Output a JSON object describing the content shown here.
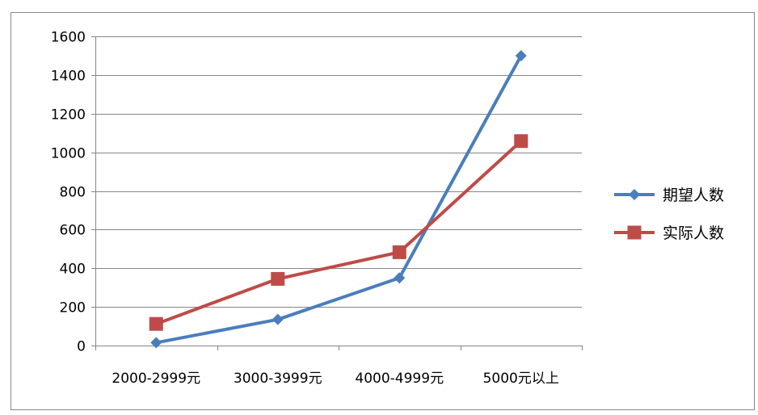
{
  "chart_data": {
    "type": "line",
    "title": "",
    "xlabel": "",
    "ylabel": "",
    "categories": [
      "2000-2999元",
      "3000-3999元",
      "4000-4999元",
      "5000元以上"
    ],
    "ylim": [
      0,
      1600
    ],
    "yticks": [
      0,
      200,
      400,
      600,
      800,
      1000,
      1200,
      1400,
      1600
    ],
    "grid": true,
    "legend": "right",
    "series": [
      {
        "name": "期望人数",
        "values": [
          15,
          135,
          350,
          1500
        ],
        "color": "#4a7ebb",
        "marker": "diamond"
      },
      {
        "name": "实际人数",
        "values": [
          112,
          345,
          483,
          1058
        ],
        "color": "#be4b48",
        "marker": "square"
      }
    ]
  }
}
